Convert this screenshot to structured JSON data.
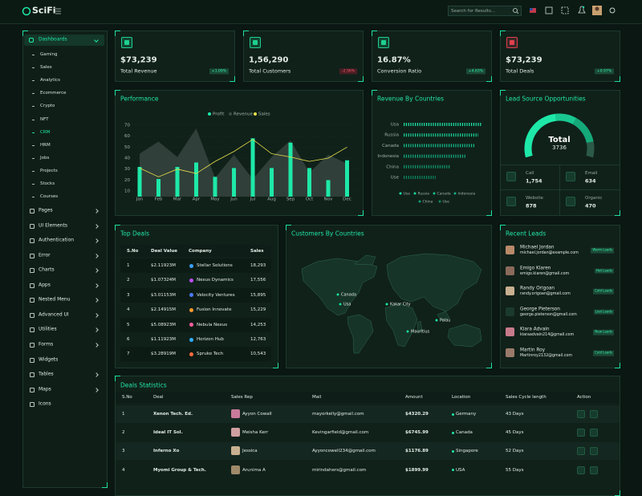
{
  "header": {
    "brand": "SciFi",
    "search_placeholder": "Search for Results..."
  },
  "sidebar": {
    "section": "Dashboards",
    "submenu": [
      "Gaming",
      "Sales",
      "Analytics",
      "Ecommerce",
      "Crypto",
      "NFT",
      "CRM",
      "HRM",
      "Jobs",
      "Projects",
      "Stocks",
      "Courses"
    ],
    "active_submenu": 6,
    "menu": [
      {
        "label": "Pages",
        "has_children": true
      },
      {
        "label": "UI Elements",
        "has_children": true
      },
      {
        "label": "Authentication",
        "has_children": true
      },
      {
        "label": "Error",
        "has_children": true
      },
      {
        "label": "Charts",
        "has_children": true
      },
      {
        "label": "Apps",
        "has_children": true
      },
      {
        "label": "Nested Menu",
        "has_children": true
      },
      {
        "label": "Advanced UI",
        "has_children": true
      },
      {
        "label": "Utilities",
        "has_children": true
      },
      {
        "label": "Forms",
        "has_children": true
      },
      {
        "label": "Widgets",
        "has_children": false
      },
      {
        "label": "Tables",
        "has_children": true
      },
      {
        "label": "Maps",
        "has_children": true
      },
      {
        "label": "Icons",
        "has_children": false
      }
    ]
  },
  "stats": [
    {
      "value": "$73,239",
      "label": "Total Revenue",
      "change": "+1.09%",
      "trend": "up",
      "icon_color": "#1fcf8f"
    },
    {
      "value": "1,56,290",
      "label": "Total Customers",
      "change": "-2.56%",
      "trend": "down",
      "icon_color": "#1fcf8f"
    },
    {
      "value": "16.87%",
      "label": "Conversion Ratio",
      "change": "+4.63%",
      "trend": "up",
      "icon_color": "#1fcf8f"
    },
    {
      "value": "$73,239",
      "label": "Total Deals",
      "change": "+0.97%",
      "trend": "up",
      "icon_color": "#e0404f"
    }
  ],
  "chart_data": [
    {
      "type": "bar",
      "title": "Performance",
      "categories": [
        "Jan",
        "Feb",
        "Mar",
        "Apr",
        "May",
        "Jun",
        "Jul",
        "Aug",
        "Sep",
        "Oct",
        "Nov",
        "Dec"
      ],
      "series": [
        {
          "name": "Profit",
          "type": "bar",
          "color": "#1ee8a8",
          "values": [
            32,
            21,
            32,
            36,
            23,
            31,
            58,
            31,
            54,
            31,
            20,
            38
          ]
        },
        {
          "name": "Revenue",
          "type": "area",
          "color": "#3b4a44",
          "values": [
            44,
            55,
            41,
            67,
            22,
            43,
            21,
            41,
            56,
            27,
            43,
            35
          ]
        },
        {
          "name": "Sales",
          "type": "line",
          "color": "#e8e04a",
          "values": [
            31,
            23,
            30,
            26,
            37,
            46,
            57,
            44,
            41,
            37,
            40,
            50
          ]
        }
      ],
      "ylim": [
        5,
        75
      ],
      "yticks": [
        10,
        20,
        30,
        40,
        50,
        60,
        70
      ]
    },
    {
      "type": "hbar",
      "title": "Revenue By Countries",
      "categories": [
        "Usa",
        "Russia",
        "Canada",
        "Indonesia",
        "China",
        "Use"
      ],
      "values": [
        98,
        93,
        88,
        78,
        58,
        40
      ],
      "xlim": [
        0,
        100
      ],
      "colors": [
        "#1ee8a8",
        "#1ad49a",
        "#17c08c",
        "#14ad7e",
        "#119a70",
        "#0e8762"
      ]
    },
    {
      "type": "donut",
      "title": "Lead Source Opportunities",
      "center_title": "Total",
      "center_value": 3736,
      "categories": [
        "Call",
        "Email",
        "Website",
        "Organic"
      ],
      "values": [
        1754,
        634,
        878,
        470
      ],
      "value_labels": [
        "1,754",
        "634",
        "878",
        "470"
      ],
      "colors": [
        "#1ee8a8",
        "#19c891",
        "#15a97a",
        "#2c5a48"
      ]
    }
  ],
  "top_deals": {
    "title": "Top Deals",
    "columns": [
      "S.No",
      "Deal Value",
      "Company",
      "Sales"
    ],
    "rows": [
      [
        "1",
        "$2.11923M",
        "Stellar Solutions",
        "18,293"
      ],
      [
        "2",
        "$1.07324M",
        "Nexus Dynamics",
        "17,556"
      ],
      [
        "3",
        "$3.01153M",
        "Velocity Ventures",
        "15,895"
      ],
      [
        "4",
        "$2.14915M",
        "Fusion Innovate",
        "15,229"
      ],
      [
        "5",
        "$5.08923M",
        "Nebula Nexus",
        "14,253"
      ],
      [
        "6",
        "$1.11923M",
        "Horizon Hub",
        "12,763"
      ],
      [
        "7",
        "$3.28919M",
        "Spruko Tech",
        "10,543"
      ]
    ],
    "logo_colors": [
      "#3aa0ff",
      "#c04dff",
      "#4a7bff",
      "#ff9a2e",
      "#ff5fa0",
      "#2fb0ff",
      "#ff6a3d"
    ]
  },
  "map": {
    "title": "Customers By Countries",
    "markers": [
      "Canada",
      "Usa",
      "Kakar City",
      "Palau",
      "Mauritius"
    ]
  },
  "recent_leads": {
    "title": "Recent Leads",
    "leads": [
      {
        "name": "Michael Jordan",
        "email": "michael.jordan@example.com",
        "status": "Warm Leads"
      },
      {
        "name": "Emigo Kiaren",
        "email": "emigo.kiaren@gmail.com",
        "status": "Hot Leads"
      },
      {
        "name": "Randy Origoan",
        "email": "randy.origoan@gmail.com",
        "status": "Cold Leads"
      },
      {
        "name": "George Pieterson",
        "email": "george.pieterson@gmail.com",
        "status": "Lost Leads"
      },
      {
        "name": "Kiara Advain",
        "email": "kiaraadvain214@gmail.com",
        "status": "New Leads"
      },
      {
        "name": "Martin Roy",
        "email": "Martinroy2132@gmail.com",
        "status": "Cold Leads"
      }
    ]
  },
  "deals_statistics": {
    "title": "Deals Statistics",
    "columns": [
      "S.No",
      "Deal",
      "Sales Rep",
      "Mail",
      "Amount",
      "Location",
      "Sales Cycle length",
      "Action"
    ],
    "rows": [
      {
        "no": "1",
        "deal": "Xenon Tech. Ed.",
        "rep": "Ayyon Cowall",
        "mail": "mayorkelly@gmail.com",
        "amount": "$4320.29",
        "location": "Germany",
        "cycle": "43 Days"
      },
      {
        "no": "2",
        "deal": "Ideal IT Sol.",
        "rep": "Meisha Kerr",
        "mail": "Kevingarfield@gmail.com",
        "amount": "$6745.99",
        "location": "Canada",
        "cycle": "45 Days"
      },
      {
        "no": "3",
        "deal": "Inferno Xo",
        "rep": "Jessica",
        "mail": "Ayyoncowell234@gmail.com",
        "amount": "$1176.89",
        "location": "Singapore",
        "cycle": "52 Days"
      },
      {
        "no": "4",
        "deal": "Myomi Group & Tech.",
        "rep": "Arunima A",
        "mail": "mirindahers@gmail.com",
        "amount": "$1899.99",
        "location": "USA",
        "cycle": "55 Days"
      }
    ]
  }
}
